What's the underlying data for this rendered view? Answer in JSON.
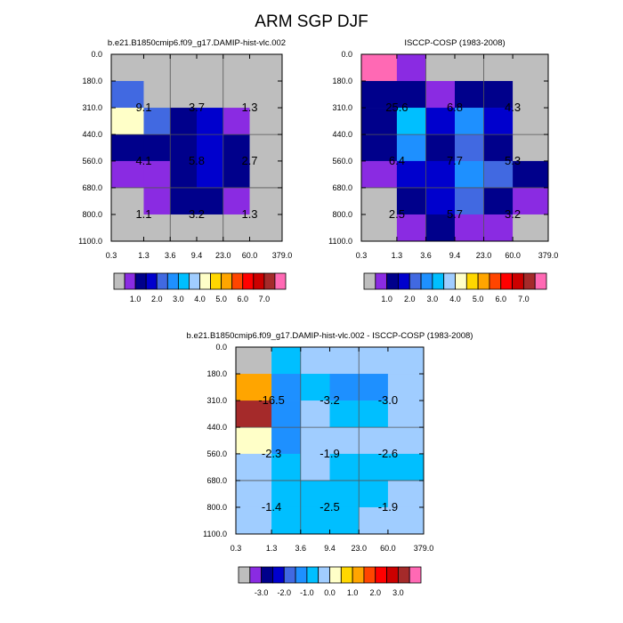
{
  "title": "ARM SGP DJF",
  "colors": {
    "missing": "#BEBEBE",
    "palette": [
      "#BEBEBE",
      "#8A2BE2",
      "#00008B",
      "#0000CD",
      "#4169E1",
      "#1E90FF",
      "#00BFFF",
      "#A0CDFF",
      "#FFFFC8",
      "#FFD700",
      "#FFA500",
      "#FF4500",
      "#FF0000",
      "#CC0000",
      "#A52A2A",
      "#FF69B4"
    ],
    "panel_background": "#BEBEBE"
  },
  "shared_axes": {
    "x_ticks": [
      "0.3",
      "1.3",
      "3.6",
      "9.4",
      "23.0",
      "60.0",
      "379.0"
    ],
    "y_ticks": [
      "0.0",
      "180.0",
      "310.0",
      "440.0",
      "560.0",
      "680.0",
      "800.0",
      "1100.0"
    ]
  },
  "chart_data": [
    {
      "type": "heatmap",
      "title": "b.e21.B1850cmip6.f09_g17.DAMIP-hist-vlc.002",
      "cells": [
        [
          0,
          0,
          0,
          0,
          0,
          0
        ],
        [
          4,
          0,
          0,
          0,
          0,
          0
        ],
        [
          8,
          4,
          2,
          3,
          1,
          0
        ],
        [
          2,
          2,
          2,
          3,
          2,
          0
        ],
        [
          1,
          1,
          2,
          3,
          2,
          0
        ],
        [
          0,
          1,
          2,
          2,
          1,
          0
        ],
        [
          0,
          0,
          0,
          0,
          0,
          0
        ]
      ],
      "annotations": [
        {
          "row": 1,
          "col": 0,
          "text": "9.1"
        },
        {
          "row": 1,
          "col": 2,
          "text": "3.7"
        },
        {
          "row": 1,
          "col": 4,
          "text": "1.3"
        },
        {
          "row": 3,
          "col": 0,
          "text": "4.1"
        },
        {
          "row": 3,
          "col": 2,
          "text": "5.8"
        },
        {
          "row": 3,
          "col": 4,
          "text": "2.7"
        },
        {
          "row": 5,
          "col": 0,
          "text": "1.1"
        },
        {
          "row": 5,
          "col": 2,
          "text": "3.2"
        },
        {
          "row": 5,
          "col": 4,
          "text": "1.3"
        }
      ],
      "colorbar_labels": [
        "1.0",
        "2.0",
        "3.0",
        "4.0",
        "5.0",
        "6.0",
        "7.0"
      ]
    },
    {
      "type": "heatmap",
      "title": "ISCCP-COSP (1983-2008)",
      "cells": [
        [
          15,
          1,
          0,
          0,
          0,
          0
        ],
        [
          2,
          2,
          1,
          2,
          2,
          0
        ],
        [
          2,
          6,
          3,
          5,
          3,
          0
        ],
        [
          2,
          5,
          2,
          4,
          2,
          0
        ],
        [
          1,
          3,
          3,
          5,
          4,
          2
        ],
        [
          0,
          2,
          3,
          4,
          2,
          1
        ],
        [
          0,
          1,
          2,
          1,
          1,
          0
        ]
      ],
      "annotations": [
        {
          "row": 1,
          "col": 0,
          "text": "25.6"
        },
        {
          "row": 1,
          "col": 2,
          "text": "6.8"
        },
        {
          "row": 1,
          "col": 4,
          "text": "4.3"
        },
        {
          "row": 3,
          "col": 0,
          "text": "6.4"
        },
        {
          "row": 3,
          "col": 2,
          "text": "7.7"
        },
        {
          "row": 3,
          "col": 4,
          "text": "5.3"
        },
        {
          "row": 5,
          "col": 0,
          "text": "2.5"
        },
        {
          "row": 5,
          "col": 2,
          "text": "5.7"
        },
        {
          "row": 5,
          "col": 4,
          "text": "3.2"
        }
      ],
      "colorbar_labels": [
        "1.0",
        "2.0",
        "3.0",
        "4.0",
        "5.0",
        "6.0",
        "7.0"
      ]
    },
    {
      "type": "heatmap",
      "title": "b.e21.B1850cmip6.f09_g17.DAMIP-hist-vlc.002 - ISCCP-COSP (1983-2008)",
      "cells": [
        [
          0,
          6,
          7,
          7,
          7,
          7
        ],
        [
          10,
          5,
          6,
          5,
          5,
          7
        ],
        [
          14,
          5,
          7,
          6,
          6,
          7
        ],
        [
          8,
          5,
          7,
          7,
          7,
          7
        ],
        [
          7,
          6,
          7,
          6,
          6,
          6
        ],
        [
          7,
          6,
          6,
          6,
          6,
          7
        ],
        [
          7,
          6,
          6,
          6,
          7,
          7
        ]
      ],
      "annotations": [
        {
          "row": 1,
          "col": 0,
          "text": "-16.5"
        },
        {
          "row": 1,
          "col": 2,
          "text": "-3.2"
        },
        {
          "row": 1,
          "col": 4,
          "text": "-3.0"
        },
        {
          "row": 3,
          "col": 0,
          "text": "-2.3"
        },
        {
          "row": 3,
          "col": 2,
          "text": "-1.9"
        },
        {
          "row": 3,
          "col": 4,
          "text": "-2.6"
        },
        {
          "row": 5,
          "col": 0,
          "text": "-1.4"
        },
        {
          "row": 5,
          "col": 2,
          "text": "-2.5"
        },
        {
          "row": 5,
          "col": 4,
          "text": "-1.9"
        }
      ],
      "colorbar_labels": [
        "-3.0",
        "-2.0",
        "-1.0",
        "0.0",
        "1.0",
        "2.0",
        "3.0"
      ]
    }
  ]
}
